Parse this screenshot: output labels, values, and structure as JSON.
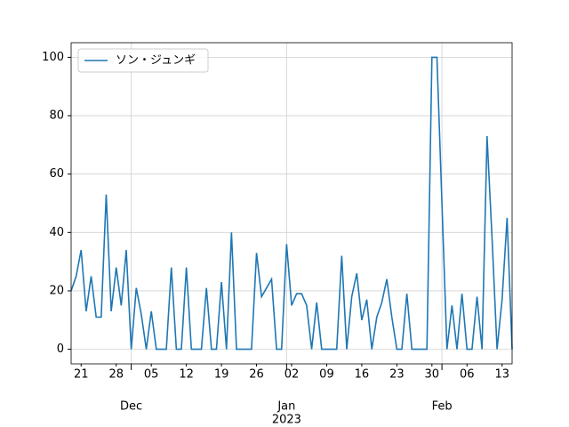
{
  "chart_data": {
    "type": "line",
    "x": [
      "2022-11-19",
      "2022-11-20",
      "2022-11-21",
      "2022-11-22",
      "2022-11-23",
      "2022-11-24",
      "2022-11-25",
      "2022-11-26",
      "2022-11-27",
      "2022-11-28",
      "2022-11-29",
      "2022-11-30",
      "2022-12-01",
      "2022-12-02",
      "2022-12-03",
      "2022-12-04",
      "2022-12-05",
      "2022-12-06",
      "2022-12-07",
      "2022-12-08",
      "2022-12-09",
      "2022-12-10",
      "2022-12-11",
      "2022-12-12",
      "2022-12-13",
      "2022-12-14",
      "2022-12-15",
      "2022-12-16",
      "2022-12-17",
      "2022-12-18",
      "2022-12-19",
      "2022-12-20",
      "2022-12-21",
      "2022-12-22",
      "2022-12-23",
      "2022-12-24",
      "2022-12-25",
      "2022-12-26",
      "2022-12-27",
      "2022-12-28",
      "2022-12-29",
      "2022-12-30",
      "2022-12-31",
      "2023-01-01",
      "2023-01-02",
      "2023-01-03",
      "2023-01-04",
      "2023-01-05",
      "2023-01-06",
      "2023-01-07",
      "2023-01-08",
      "2023-01-09",
      "2023-01-10",
      "2023-01-11",
      "2023-01-12",
      "2023-01-13",
      "2023-01-14",
      "2023-01-15",
      "2023-01-16",
      "2023-01-17",
      "2023-01-18",
      "2023-01-19",
      "2023-01-20",
      "2023-01-21",
      "2023-01-22",
      "2023-01-23",
      "2023-01-24",
      "2023-01-25",
      "2023-01-26",
      "2023-01-27",
      "2023-01-28",
      "2023-01-29",
      "2023-01-30",
      "2023-01-31",
      "2023-02-01",
      "2023-02-02",
      "2023-02-03",
      "2023-02-04",
      "2023-02-05",
      "2023-02-06",
      "2023-02-07",
      "2023-02-08",
      "2023-02-09",
      "2023-02-10",
      "2023-02-11",
      "2023-02-12",
      "2023-02-13",
      "2023-02-14",
      "2023-02-15"
    ],
    "series": [
      {
        "name": "ソン・ジュンギ",
        "color": "#1f77b4",
        "values": [
          20,
          25,
          34,
          13,
          25,
          11,
          11,
          53,
          13,
          28,
          15,
          34,
          0,
          21,
          12,
          0,
          13,
          0,
          0,
          0,
          28,
          0,
          0,
          28,
          0,
          0,
          0,
          21,
          0,
          0,
          23,
          0,
          40,
          0,
          0,
          0,
          0,
          33,
          18,
          21,
          24,
          0,
          0,
          36,
          15,
          19,
          19,
          15,
          0,
          16,
          0,
          0,
          0,
          0,
          32,
          0,
          18,
          26,
          10,
          17,
          0,
          11,
          16,
          24,
          11,
          0,
          0,
          19,
          0,
          0,
          0,
          0,
          100,
          100,
          50,
          0,
          15,
          0,
          19,
          0,
          0,
          18,
          0,
          73,
          38,
          0,
          17,
          45,
          0
        ]
      }
    ],
    "xlim": [
      "2022-11-19",
      "2023-02-15"
    ],
    "ylim": [
      -5,
      105
    ],
    "yticks": [
      0,
      20,
      40,
      60,
      80,
      100
    ],
    "xticks": [
      {
        "value": "2022-11-21",
        "label": "21"
      },
      {
        "value": "2022-11-28",
        "label": "28"
      },
      {
        "value": "2022-12-05",
        "label": "05"
      },
      {
        "value": "2022-12-12",
        "label": "12"
      },
      {
        "value": "2022-12-19",
        "label": "19"
      },
      {
        "value": "2022-12-26",
        "label": "26"
      },
      {
        "value": "2023-01-02",
        "label": "02"
      },
      {
        "value": "2023-01-09",
        "label": "09"
      },
      {
        "value": "2023-01-16",
        "label": "16"
      },
      {
        "value": "2023-01-23",
        "label": "23"
      },
      {
        "value": "2023-01-30",
        "label": "30"
      },
      {
        "value": "2023-02-06",
        "label": "06"
      },
      {
        "value": "2023-02-13",
        "label": "13"
      }
    ],
    "month_ticks": [
      {
        "value": "2022-12-01",
        "label": "Dec"
      },
      {
        "value": "2023-01-01",
        "label": "Jan"
      },
      {
        "value": "2023-02-01",
        "label": "Feb"
      }
    ],
    "year_label": {
      "value": "2023-01-01",
      "label": "2023"
    },
    "grid": true,
    "legend": "upper left"
  }
}
